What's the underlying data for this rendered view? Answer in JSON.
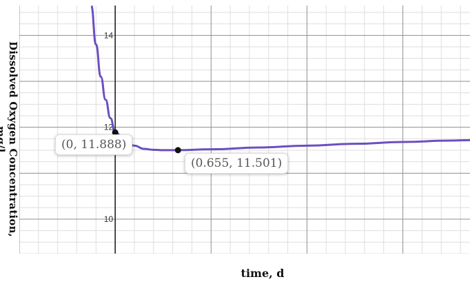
{
  "chart_data": {
    "type": "line",
    "xlabel": "time, d",
    "ylabel": "Dissolved Oxygen Concentration, mg/l",
    "xlim": [
      -1.0,
      3.7
    ],
    "ylim": [
      9.25,
      14.65
    ],
    "y_ticks": [
      "10",
      "12",
      "14"
    ],
    "grid": true,
    "series": [
      {
        "color": "#6a4fbf",
        "x": [
          -0.25,
          -0.2,
          -0.15,
          -0.1,
          -0.05,
          0,
          0.1,
          0.2,
          0.3,
          0.4,
          0.5,
          0.655,
          1.0,
          1.5,
          2.0,
          2.5,
          3.0,
          3.5,
          3.7
        ],
        "y": [
          14.65,
          13.8,
          13.1,
          12.6,
          12.2,
          11.888,
          11.7,
          11.6,
          11.53,
          11.51,
          11.502,
          11.501,
          11.52,
          11.56,
          11.6,
          11.64,
          11.68,
          11.71,
          11.72
        ]
      }
    ],
    "points": [
      {
        "x": 0,
        "y": 11.888,
        "label": "(0, 11.888)"
      },
      {
        "x": 0.655,
        "y": 11.501,
        "label": "(0.655, 11.501)"
      }
    ]
  }
}
